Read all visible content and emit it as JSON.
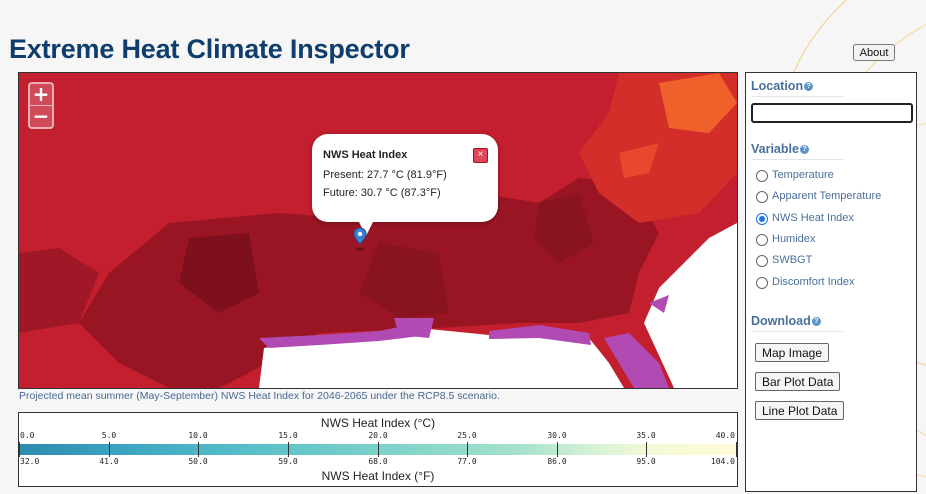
{
  "app": {
    "title": "Extreme Heat Climate Inspector",
    "about_label": "About"
  },
  "map": {
    "zoom_in_label": "+",
    "zoom_out_label": "−",
    "popup": {
      "title": "NWS Heat Index",
      "present": "Present: 27.7 °C (81.9°F)",
      "future": "Future: 30.7 °C (87.3°F)",
      "close_label": "×"
    },
    "caption": "Projected mean summer (May-September) NWS Heat Index for 2046-2065 under the RCP8.5 scenario.",
    "colors": {
      "hot": "#c31f2e",
      "darker": "#9a1524",
      "darkest": "#7e101d",
      "extreme": "#f0602a",
      "water": "#ffffff",
      "coast": "#b14ab3"
    }
  },
  "legend": {
    "title_c": "NWS Heat Index (°C)",
    "title_f": "NWS Heat Index (°F)",
    "ticks_c": [
      "0.0",
      "5.0",
      "10.0",
      "15.0",
      "20.0",
      "25.0",
      "30.0",
      "35.0",
      "40.0"
    ],
    "ticks_f": [
      "32.0",
      "41.0",
      "50.0",
      "59.0",
      "68.0",
      "77.0",
      "86.0",
      "95.0",
      "104.0"
    ],
    "colors": [
      "#2d8bab",
      "#5ac0c9",
      "#a6e2cc",
      "#fffcd6"
    ]
  },
  "sidebar": {
    "location_heading": "Location",
    "location_value": "",
    "variable_heading": "Variable",
    "variables": [
      {
        "label": "Temperature",
        "selected": false
      },
      {
        "label": "Apparent Temperature",
        "selected": false
      },
      {
        "label": "NWS Heat Index",
        "selected": true
      },
      {
        "label": "Humidex",
        "selected": false
      },
      {
        "label": "SWBGT",
        "selected": false
      },
      {
        "label": "Discomfort Index",
        "selected": false
      }
    ],
    "download_heading": "Download",
    "downloads": [
      "Map Image",
      "Bar Plot Data",
      "Line Plot Data"
    ]
  }
}
